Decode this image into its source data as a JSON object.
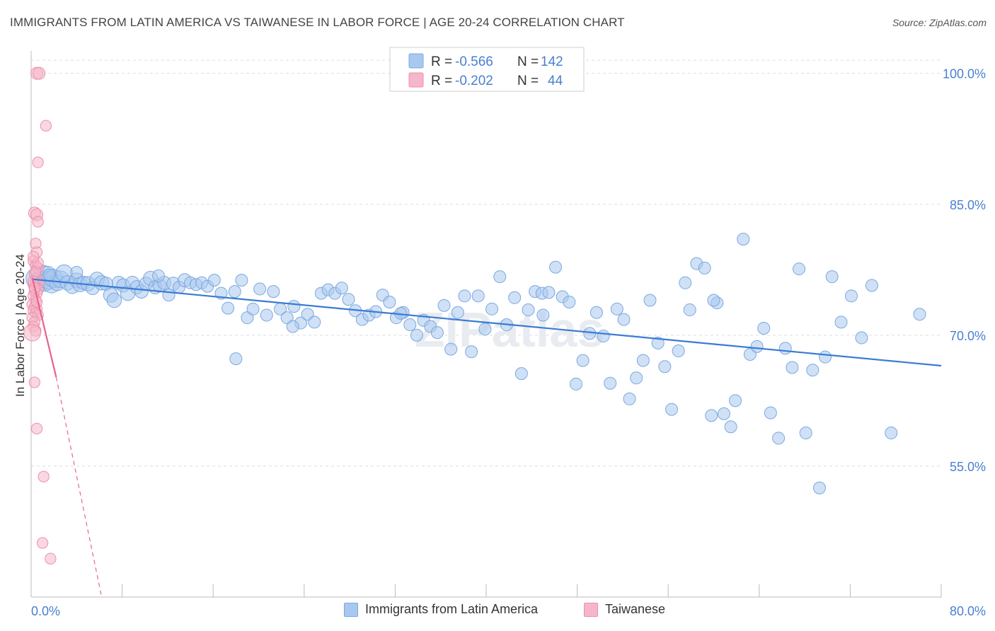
{
  "title": "IMMIGRANTS FROM LATIN AMERICA VS TAIWANESE IN LABOR FORCE | AGE 20-24 CORRELATION CHART",
  "source": "Source: ZipAtlas.com",
  "watermark": "ZIPatlas",
  "colors": {
    "blue_fill": "#a9c8ef",
    "blue_stroke": "#7aa8e0",
    "blue_line": "#3a7bd5",
    "pink_fill": "#f6b6c9",
    "pink_stroke": "#ec8fab",
    "pink_line": "#e8628b",
    "tick_label": "#4a7fd0",
    "grid": "#dddddd"
  },
  "chart_data": {
    "type": "scatter",
    "xlabel": "",
    "ylabel": "In Labor Force | Age 20-24",
    "xlim": [
      0,
      80
    ],
    "ylim": [
      40,
      102
    ],
    "x_tick_labels": [
      "0.0%",
      "80.0%"
    ],
    "y_ticks": [
      55,
      70,
      85,
      100
    ],
    "y_tick_labels": [
      "55.0%",
      "70.0%",
      "85.0%",
      "100.0%"
    ],
    "grid": true,
    "legend_placement": "top-center",
    "stats": [
      {
        "r_label": "R =",
        "r": "-0.566",
        "n_label": "N =",
        "n": "142"
      },
      {
        "r_label": "R =",
        "r": "-0.202",
        "n_label": "N =",
        "n": "44"
      }
    ],
    "series": [
      {
        "name": "Immigrants from Latin America",
        "color": "#a9c8ef",
        "trend": {
          "x": [
            0.2,
            80
          ],
          "y": [
            76.4,
            66.5
          ]
        },
        "points": [
          [
            0.5,
            76.5
          ],
          [
            0.8,
            76.2
          ],
          [
            1.0,
            77.0
          ],
          [
            1.2,
            76.0
          ],
          [
            1.4,
            76.8
          ],
          [
            1.6,
            76.3
          ],
          [
            1.8,
            75.8
          ],
          [
            2.0,
            76.5
          ],
          [
            2.3,
            76.0
          ],
          [
            2.6,
            76.4
          ],
          [
            2.9,
            77.1
          ],
          [
            3.2,
            76.0
          ],
          [
            3.6,
            75.6
          ],
          [
            4.0,
            76.3
          ],
          [
            4.3,
            75.8
          ],
          [
            4.6,
            76.0
          ],
          [
            5.0,
            75.9
          ],
          [
            5.4,
            75.4
          ],
          [
            5.8,
            76.4
          ],
          [
            6.2,
            76.0
          ],
          [
            6.6,
            75.9
          ],
          [
            7.0,
            74.6
          ],
          [
            7.3,
            74.0
          ],
          [
            7.7,
            76.0
          ],
          [
            8.1,
            75.7
          ],
          [
            8.5,
            74.8
          ],
          [
            8.9,
            76.0
          ],
          [
            9.3,
            75.5
          ],
          [
            9.7,
            75.0
          ],
          [
            10.1,
            75.9
          ],
          [
            10.5,
            76.5
          ],
          [
            10.9,
            75.5
          ],
          [
            11.3,
            75.7
          ],
          [
            11.7,
            76.0
          ],
          [
            12.1,
            74.6
          ],
          [
            12.5,
            75.9
          ],
          [
            13.0,
            75.5
          ],
          [
            13.5,
            76.3
          ],
          [
            14.0,
            76.0
          ],
          [
            14.5,
            75.8
          ],
          [
            15.0,
            76.0
          ],
          [
            15.5,
            75.6
          ],
          [
            16.1,
            76.3
          ],
          [
            16.7,
            74.8
          ],
          [
            17.3,
            73.1
          ],
          [
            17.9,
            75.0
          ],
          [
            18.5,
            76.3
          ],
          [
            19.0,
            72.0
          ],
          [
            19.5,
            73.0
          ],
          [
            20.1,
            75.3
          ],
          [
            20.7,
            72.3
          ],
          [
            21.3,
            75.0
          ],
          [
            21.9,
            73.0
          ],
          [
            22.5,
            72.0
          ],
          [
            23.1,
            73.3
          ],
          [
            23.7,
            71.4
          ],
          [
            24.3,
            72.4
          ],
          [
            24.9,
            71.5
          ],
          [
            25.5,
            74.8
          ],
          [
            26.1,
            75.2
          ],
          [
            26.7,
            74.8
          ],
          [
            27.3,
            75.4
          ],
          [
            27.9,
            74.1
          ],
          [
            28.5,
            72.8
          ],
          [
            29.1,
            71.8
          ],
          [
            29.7,
            72.3
          ],
          [
            30.3,
            72.7
          ],
          [
            30.9,
            74.6
          ],
          [
            31.5,
            73.8
          ],
          [
            32.1,
            72.0
          ],
          [
            32.7,
            72.6
          ],
          [
            33.3,
            71.2
          ],
          [
            33.9,
            70.0
          ],
          [
            34.5,
            71.7
          ],
          [
            35.1,
            71.0
          ],
          [
            35.7,
            70.3
          ],
          [
            36.3,
            73.4
          ],
          [
            36.9,
            68.4
          ],
          [
            37.5,
            72.6
          ],
          [
            38.1,
            74.5
          ],
          [
            38.7,
            68.1
          ],
          [
            39.3,
            74.5
          ],
          [
            39.9,
            70.7
          ],
          [
            40.5,
            73.0
          ],
          [
            41.2,
            76.7
          ],
          [
            41.8,
            71.2
          ],
          [
            42.5,
            74.3
          ],
          [
            43.1,
            65.6
          ],
          [
            43.7,
            72.9
          ],
          [
            44.3,
            75.0
          ],
          [
            44.9,
            74.8
          ],
          [
            45.5,
            74.9
          ],
          [
            46.1,
            77.8
          ],
          [
            46.7,
            74.4
          ],
          [
            47.3,
            73.8
          ],
          [
            47.9,
            64.4
          ],
          [
            48.5,
            67.1
          ],
          [
            49.1,
            70.2
          ],
          [
            49.7,
            72.6
          ],
          [
            50.3,
            69.9
          ],
          [
            50.9,
            64.5
          ],
          [
            51.5,
            73.0
          ],
          [
            52.1,
            71.8
          ],
          [
            52.6,
            62.7
          ],
          [
            53.2,
            65.1
          ],
          [
            53.8,
            67.1
          ],
          [
            54.4,
            74.0
          ],
          [
            55.1,
            69.1
          ],
          [
            55.7,
            66.4
          ],
          [
            56.3,
            61.5
          ],
          [
            56.9,
            68.2
          ],
          [
            57.5,
            76.0
          ],
          [
            57.9,
            72.9
          ],
          [
            58.5,
            78.2
          ],
          [
            59.2,
            77.7
          ],
          [
            59.8,
            60.8
          ],
          [
            60.3,
            73.7
          ],
          [
            60.9,
            61.0
          ],
          [
            61.5,
            59.5
          ],
          [
            61.9,
            62.5
          ],
          [
            62.6,
            81.0
          ],
          [
            63.2,
            67.8
          ],
          [
            63.8,
            68.7
          ],
          [
            64.4,
            70.8
          ],
          [
            65.0,
            61.1
          ],
          [
            65.7,
            58.2
          ],
          [
            66.3,
            68.5
          ],
          [
            66.9,
            66.3
          ],
          [
            67.5,
            77.6
          ],
          [
            68.1,
            58.8
          ],
          [
            68.7,
            66.0
          ],
          [
            69.3,
            52.5
          ],
          [
            69.8,
            67.5
          ],
          [
            70.4,
            76.7
          ],
          [
            71.2,
            71.5
          ],
          [
            72.1,
            74.5
          ],
          [
            73.0,
            69.7
          ],
          [
            73.9,
            75.7
          ],
          [
            75.6,
            58.8
          ],
          [
            78.1,
            72.4
          ],
          [
            1.6,
            76.9
          ],
          [
            4.0,
            77.2
          ],
          [
            11.2,
            76.8
          ],
          [
            18.0,
            67.3
          ],
          [
            23.0,
            71.0
          ],
          [
            32.5,
            72.5
          ],
          [
            45.0,
            72.3
          ],
          [
            60.0,
            74.0
          ]
        ],
        "sizes": [
          18,
          16,
          15,
          14,
          16,
          15,
          14,
          15,
          13,
          14,
          14,
          12,
          12,
          12,
          12,
          11,
          12,
          11,
          12,
          12,
          11,
          12,
          12,
          11,
          11,
          12,
          11,
          11,
          11,
          11,
          12,
          11,
          11,
          11,
          10,
          11,
          10,
          11,
          10,
          10,
          10,
          10,
          10,
          10,
          10,
          10,
          10,
          10,
          10,
          10,
          10,
          10,
          10,
          10,
          10,
          10,
          10,
          10,
          10,
          10,
          10,
          10,
          10,
          10,
          10,
          10,
          10,
          10,
          10,
          10,
          10,
          10,
          10,
          10,
          10,
          10,
          10,
          10,
          10,
          10,
          10,
          10,
          10,
          10,
          10,
          10,
          10,
          10,
          10,
          10,
          10,
          10,
          10,
          10,
          10,
          10,
          10,
          10,
          10,
          10,
          10,
          10,
          10,
          10,
          10,
          10,
          10,
          10,
          10,
          10,
          10,
          10,
          10,
          10,
          10,
          10,
          10,
          10,
          10,
          10,
          10,
          10,
          10,
          10,
          10,
          10,
          10,
          10,
          10,
          10,
          10,
          10,
          10,
          10,
          10,
          10,
          10,
          10,
          10,
          10,
          10,
          10
        ]
      },
      {
        "name": "Taiwanese",
        "color": "#f6b6c9",
        "trend": {
          "x": [
            0.1,
            2.2
          ],
          "y": [
            76.6,
            65.2
          ],
          "dashed_x": [
            2.2,
            6.2
          ],
          "dashed_y": [
            65.2,
            40.0
          ]
        },
        "points": [
          [
            0.5,
            100.0
          ],
          [
            0.7,
            100.0
          ],
          [
            1.3,
            94.0
          ],
          [
            0.6,
            89.8
          ],
          [
            0.3,
            84.0
          ],
          [
            0.5,
            83.8
          ],
          [
            0.6,
            83.0
          ],
          [
            0.4,
            80.5
          ],
          [
            0.5,
            79.5
          ],
          [
            0.2,
            78.5
          ],
          [
            0.4,
            78.0
          ],
          [
            0.6,
            77.7
          ],
          [
            0.3,
            77.0
          ],
          [
            0.5,
            76.5
          ],
          [
            0.7,
            76.0
          ],
          [
            0.2,
            75.8
          ],
          [
            0.4,
            75.5
          ],
          [
            0.6,
            75.2
          ],
          [
            0.3,
            75.0
          ],
          [
            0.5,
            74.8
          ],
          [
            0.2,
            74.5
          ],
          [
            0.4,
            74.0
          ],
          [
            0.1,
            73.5
          ],
          [
            0.3,
            73.2
          ],
          [
            0.5,
            73.0
          ],
          [
            0.2,
            72.8
          ],
          [
            0.4,
            72.5
          ],
          [
            0.6,
            72.3
          ],
          [
            0.1,
            72.0
          ],
          [
            0.3,
            71.5
          ],
          [
            0.2,
            71.0
          ],
          [
            0.4,
            70.5
          ],
          [
            0.1,
            70.3
          ],
          [
            0.3,
            64.6
          ],
          [
            0.5,
            59.3
          ],
          [
            1.1,
            53.8
          ],
          [
            1.0,
            46.2
          ],
          [
            1.7,
            44.4
          ],
          [
            0.2,
            76.2
          ],
          [
            0.4,
            77.3
          ],
          [
            0.6,
            78.3
          ],
          [
            0.2,
            79.0
          ],
          [
            0.3,
            75.4
          ],
          [
            0.5,
            73.8
          ]
        ],
        "sizes": [
          10,
          10,
          9,
          9,
          10,
          10,
          9,
          9,
          9,
          9,
          9,
          9,
          9,
          9,
          9,
          9,
          9,
          9,
          9,
          9,
          9,
          9,
          9,
          9,
          9,
          9,
          9,
          9,
          9,
          9,
          9,
          9,
          14,
          9,
          9,
          9,
          9,
          9,
          9,
          9,
          9,
          9,
          9,
          9
        ]
      }
    ]
  },
  "legend_bottom": [
    {
      "label": "Immigrants from Latin America"
    },
    {
      "label": "Taiwanese"
    }
  ]
}
